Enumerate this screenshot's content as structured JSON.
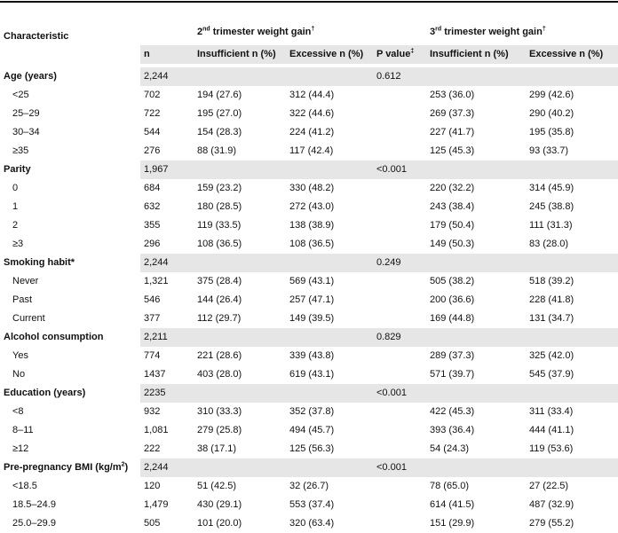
{
  "table": {
    "header": {
      "characteristic": "Characteristic",
      "second": {
        "ordinal": "2",
        "suffix": "nd",
        "text": "trimester weight gain",
        "mark": "†"
      },
      "third": {
        "ordinal": "3",
        "suffix": "rd",
        "text": "trimester weight gain",
        "mark": "†"
      },
      "n": "n",
      "insufficient2": "Insufficient n (%)",
      "excessive2": "Excessive n (%)",
      "p_value": {
        "text": "P value",
        "mark": "‡"
      },
      "insufficient3": "Insufficient n (%)",
      "excessive3": "Excessive n (%)"
    },
    "rows": [
      {
        "label": "Age (years)",
        "n": "2,244",
        "p": "0.612"
      },
      {
        "label": "<25",
        "n": "702",
        "cells": [
          "194 (27.6)",
          "312 (44.4)",
          "253 (36.0)",
          "299 (42.6)"
        ]
      },
      {
        "label": "25–29",
        "n": "722",
        "cells": [
          "195 (27.0)",
          "322 (44.6)",
          "269 (37.3)",
          "290 (40.2)"
        ]
      },
      {
        "label": "30–34",
        "n": "544",
        "cells": [
          "154 (28.3)",
          "224 (41.2)",
          "227 (41.7)",
          "195 (35.8)"
        ]
      },
      {
        "label": "≥35",
        "n": "276",
        "cells": [
          "88 (31.9)",
          "117 (42.4)",
          "125 (45.3)",
          "93 (33.7)"
        ]
      },
      {
        "label": "Parity",
        "n": "1,967",
        "p": "<0.001"
      },
      {
        "label": "0",
        "n": "684",
        "cells": [
          "159 (23.2)",
          "330 (48.2)",
          "220 (32.2)",
          "314 (45.9)"
        ]
      },
      {
        "label": "1",
        "n": "632",
        "cells": [
          "180 (28.5)",
          "272 (43.0)",
          "243 (38.4)",
          "245 (38.8)"
        ]
      },
      {
        "label": "2",
        "n": "355",
        "cells": [
          "119 (33.5)",
          "138 (38.9)",
          "179 (50.4)",
          "111 (31.3)"
        ]
      },
      {
        "label": "≥3",
        "n": "296",
        "cells": [
          "108 (36.5)",
          "108 (36.5)",
          "149 (50.3)",
          "83 (28.0)"
        ]
      },
      {
        "label": "Smoking habit*",
        "n": "2,244",
        "p": "0.249"
      },
      {
        "label": "Never",
        "n": "1,321",
        "cells": [
          "375 (28.4)",
          "569 (43.1)",
          "505 (38.2)",
          "518 (39.2)"
        ]
      },
      {
        "label": "Past",
        "n": "546",
        "cells": [
          "144 (26.4)",
          "257 (47.1)",
          "200 (36.6)",
          "228 (41.8)"
        ]
      },
      {
        "label": "Current",
        "n": "377",
        "cells": [
          "112 (29.7)",
          "149 (39.5)",
          "169 (44.8)",
          "131 (34.7)"
        ]
      },
      {
        "label": "Alcohol consumption",
        "n": "2,211",
        "p": "0.829"
      },
      {
        "label": "Yes",
        "n": "774",
        "cells": [
          "221 (28.6)",
          "339 (43.8)",
          "289 (37.3)",
          "325 (42.0)"
        ]
      },
      {
        "label": "No",
        "n": "1437",
        "cells": [
          "403 (28.0)",
          "619 (43.1)",
          "571 (39.7)",
          "545 (37.9)"
        ]
      },
      {
        "label": "Education (years)",
        "n": "2235",
        "p": "<0.001"
      },
      {
        "label": "<8",
        "n": "932",
        "cells": [
          "310 (33.3)",
          "352 (37.8)",
          "422 (45.3)",
          "311 (33.4)"
        ]
      },
      {
        "label": "8–11",
        "n": "1,081",
        "cells": [
          "279 (25.8)",
          "494 (45.7)",
          "393 (36.4)",
          "444 (41.1)"
        ]
      },
      {
        "label": "≥12",
        "n": "222",
        "cells": [
          "38 (17.1)",
          "125 (56.3)",
          "54 (24.3)",
          "119 (53.6)"
        ]
      },
      {
        "label_parts": {
          "text": "Pre-pregnancy BMI (kg/m",
          "sup": "2",
          "close": ")"
        },
        "n": "2,244",
        "p": "<0.001"
      },
      {
        "label": "<18.5",
        "n": "120",
        "cells": [
          "51 (42.5)",
          "32 (26.7)",
          "78 (65.0)",
          "27 (22.5)"
        ]
      },
      {
        "label": "18.5–24.9",
        "n": "1,479",
        "cells": [
          "430 (29.1)",
          "553 (37.4)",
          "614 (41.5)",
          "487 (32.9)"
        ]
      },
      {
        "label": "25.0–29.9",
        "n": "505",
        "cells": [
          "101 (20.0)",
          "320 (63.4)",
          "151 (29.9)",
          "279 (55.2)"
        ]
      }
    ]
  }
}
